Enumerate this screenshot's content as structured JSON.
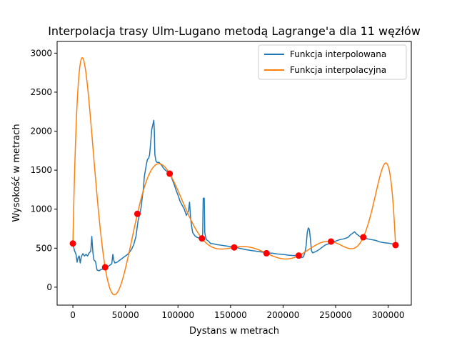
{
  "chart_data": {
    "type": "line",
    "title": "Interpolacja trasy Ulm-Lugano metodą Lagrange'a dla 11 węzłów",
    "xlabel": "Dystans w metrach",
    "ylabel": "Wysokość w metrach",
    "xlim": [
      -15000,
      322000
    ],
    "ylim": [
      -230,
      3150
    ],
    "xticks": [
      0,
      50000,
      100000,
      150000,
      200000,
      250000,
      300000
    ],
    "yticks": [
      0,
      500,
      1000,
      1500,
      2000,
      2500,
      3000
    ],
    "legend_position": "top-right",
    "series": [
      {
        "name": "Funkcja interpolowana",
        "color": "#1f77b4",
        "x": [
          0,
          1500,
          3000,
          4000,
          5000,
          6000,
          7000,
          8000,
          9500,
          11000,
          12500,
          14000,
          15500,
          17000,
          18000,
          19000,
          20000,
          21500,
          23000,
          25000,
          27000,
          29000,
          31000,
          33000,
          35000,
          37000,
          38000,
          39000,
          40000,
          42000,
          44000,
          46000,
          48000,
          50000,
          52000,
          54000,
          56000,
          58000,
          60000,
          62000,
          64000,
          65000,
          66000,
          67000,
          68000,
          69000,
          70000,
          71000,
          72000,
          73000,
          74000,
          75000,
          76000,
          77000,
          77500,
          78000,
          79000,
          80000,
          82000,
          84000,
          86000,
          88000,
          90000,
          92000,
          93000,
          94000,
          96000,
          98000,
          100000,
          102000,
          104000,
          106000,
          108000,
          110000,
          111000,
          112000,
          113000,
          114000,
          116000,
          118000,
          120000,
          122000,
          123000,
          123500,
          124000,
          125000,
          125500,
          126000,
          127000,
          129000,
          131000,
          134000,
          137000,
          140000,
          145000,
          150000,
          155000,
          160000,
          165000,
          170000,
          175000,
          180000,
          185000,
          190000,
          195000,
          200000,
          205000,
          210000,
          215000,
          218000,
          219500,
          221000,
          222000,
          223000,
          224000,
          225000,
          226000,
          227000,
          228000,
          230000,
          233000,
          236000,
          240000,
          244000,
          246000,
          250000,
          254000,
          258000,
          262000,
          264000,
          266000,
          268000,
          270000,
          273000,
          276000,
          277000,
          280000,
          284000,
          288000,
          292000,
          296000,
          300000,
          304000,
          307000
        ],
        "y": [
          560,
          470,
          420,
          320,
          380,
          400,
          310,
          390,
          430,
          400,
          420,
          400,
          440,
          460,
          650,
          450,
          350,
          330,
          220,
          210,
          230,
          230,
          245,
          260,
          280,
          300,
          420,
          340,
          310,
          320,
          340,
          360,
          380,
          400,
          420,
          450,
          490,
          550,
          650,
          850,
          960,
          1030,
          1150,
          1250,
          1420,
          1500,
          1580,
          1640,
          1650,
          1700,
          1850,
          2020,
          2080,
          2140,
          2000,
          1700,
          1620,
          1600,
          1600,
          1570,
          1530,
          1500,
          1480,
          1470,
          1450,
          1400,
          1330,
          1250,
          1180,
          1100,
          1050,
          1000,
          920,
          980,
          1090,
          880,
          780,
          700,
          660,
          640,
          630,
          620,
          630,
          690,
          1140,
          1140,
          700,
          660,
          610,
          590,
          560,
          555,
          545,
          540,
          530,
          520,
          510,
          495,
          480,
          470,
          460,
          450,
          440,
          435,
          425,
          420,
          410,
          405,
          410,
          380,
          390,
          460,
          540,
          700,
          760,
          740,
          620,
          470,
          440,
          450,
          470,
          500,
          540,
          560,
          580,
          590,
          610,
          620,
          640,
          670,
          690,
          710,
          680,
          650,
          630,
          640,
          620,
          610,
          600,
          580,
          570,
          565,
          555,
          540
        ]
      },
      {
        "name": "Funkcja interpolacyjna",
        "color": "#ff7f0e",
        "nodes_x": [
          0,
          30700,
          61400,
          92100,
          122800,
          153500,
          184200,
          214900,
          245600,
          276300,
          307000
        ],
        "nodes_y": [
          560,
          255,
          940,
          1455,
          625,
          510,
          435,
          405,
          585,
          640,
          540
        ]
      }
    ],
    "legend": [
      "Funkcja interpolowana",
      "Funkcja interpolacyjna"
    ],
    "node_marker_color": "#ff0000"
  }
}
